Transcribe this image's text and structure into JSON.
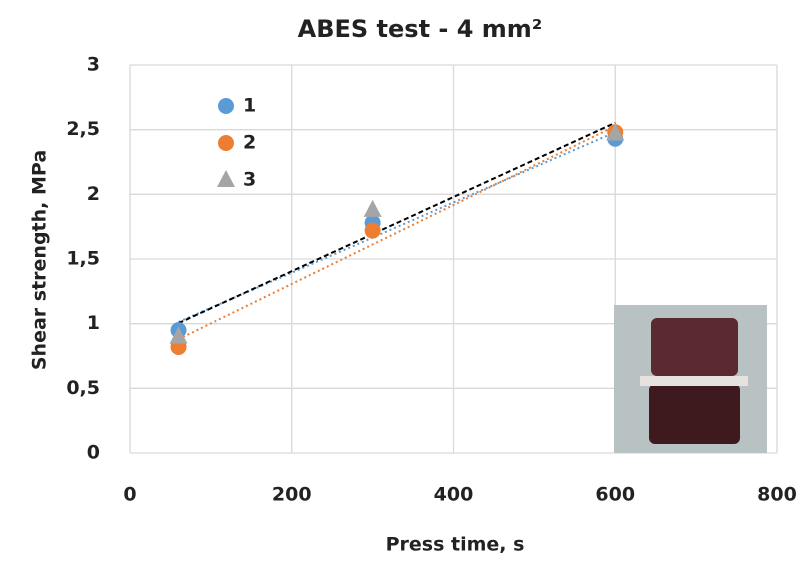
{
  "chart_data": {
    "type": "scatter",
    "title": "ABES test - 4 mm²",
    "x_label": "Press time, s",
    "y_label": "Shear strength, MPa",
    "xlim": [
      0,
      800
    ],
    "xticks": [
      0,
      200,
      400,
      600,
      800
    ],
    "ylim": [
      0,
      3
    ],
    "yticks": [
      0,
      {
        "value": 0.5,
        "label": "0,5"
      },
      1,
      {
        "value": 1.5,
        "label": "1,5"
      },
      2,
      {
        "value": 2.5,
        "label": "2,5"
      },
      3
    ],
    "grid": true,
    "legend": "upper left",
    "series": [
      {
        "name": "1",
        "color": "#5b9bd5",
        "marker": "circle",
        "trendline_color": "#5b9bd5",
        "x": [
          60,
          300,
          600
        ],
        "values": [
          0.95,
          1.78,
          2.43
        ]
      },
      {
        "name": "2",
        "color": "#ed7d31",
        "marker": "circle",
        "trendline_color": "#ed7d31",
        "x": [
          60,
          300,
          600
        ],
        "values": [
          0.82,
          1.72,
          2.48
        ]
      },
      {
        "name": "3",
        "color": "#a5a5a5",
        "marker": "triangle",
        "trendline_color": "#000000",
        "x": [
          60,
          300,
          600
        ],
        "values": [
          0.9,
          1.88,
          2.47
        ]
      }
    ]
  }
}
